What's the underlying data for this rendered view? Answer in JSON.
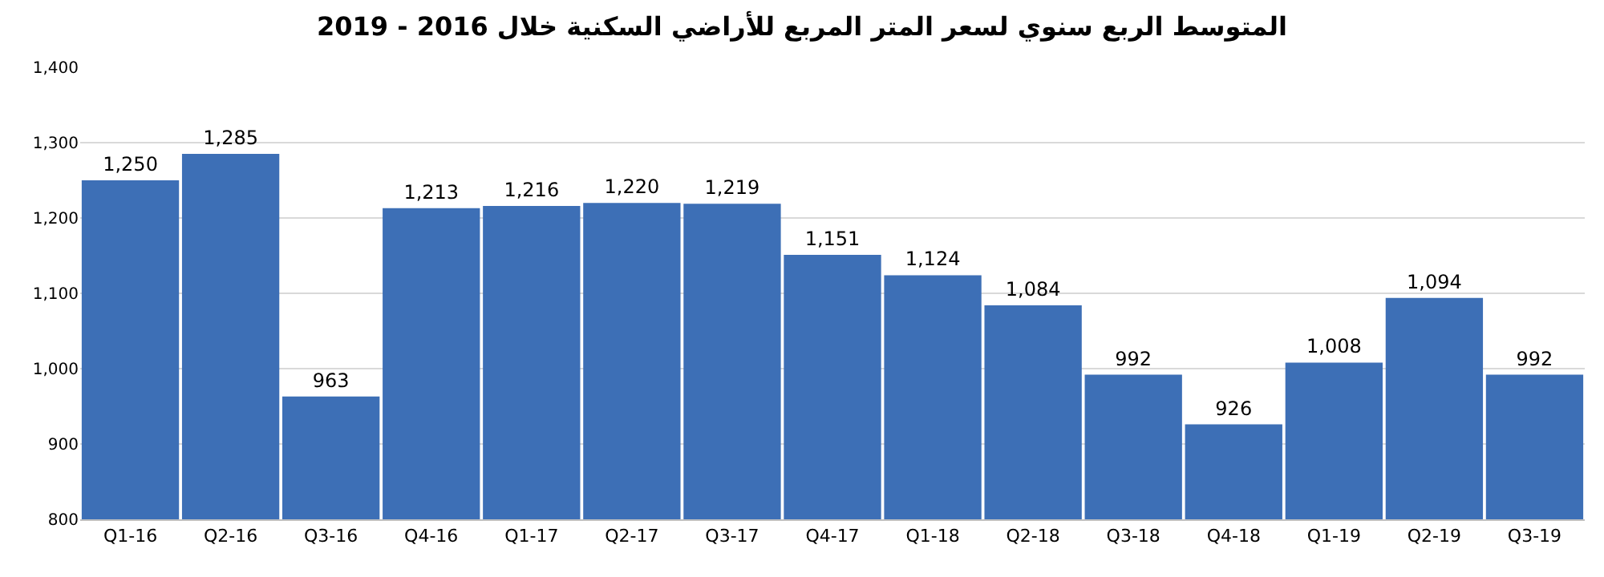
{
  "chart_data": {
    "type": "bar",
    "title": "المتوسط الربع سنوي لسعر المتر المربع للأراضي السكنية خلال 2016 - 2019",
    "categories": [
      "Q1-16",
      "Q2-16",
      "Q3-16",
      "Q4-16",
      "Q1-17",
      "Q2-17",
      "Q3-17",
      "Q4-17",
      "Q1-18",
      "Q2-18",
      "Q3-18",
      "Q4-18",
      "Q1-19",
      "Q2-19",
      "Q3-19"
    ],
    "values": [
      1250,
      1285,
      963,
      1213,
      1216,
      1220,
      1219,
      1151,
      1124,
      1084,
      992,
      926,
      1008,
      1094,
      992
    ],
    "value_labels": [
      "1,250",
      "1,285",
      "963",
      "1,213",
      "1,216",
      "1,220",
      "1,219",
      "1,151",
      "1,124",
      "1,084",
      "992",
      "926",
      "1,008",
      "1,094",
      "992"
    ],
    "color": "#3d6fb6",
    "ylim": [
      800,
      1400
    ],
    "yticks": [
      {
        "value": 800,
        "label": "800"
      },
      {
        "value": 900,
        "label": "900"
      },
      {
        "value": 1000,
        "label": "1,000"
      },
      {
        "value": 1100,
        "label": "1,100"
      },
      {
        "value": 1200,
        "label": "1,200"
      },
      {
        "value": 1300,
        "label": "1,300"
      },
      {
        "value": 1400,
        "label": "1,400"
      }
    ],
    "grid": "y"
  }
}
